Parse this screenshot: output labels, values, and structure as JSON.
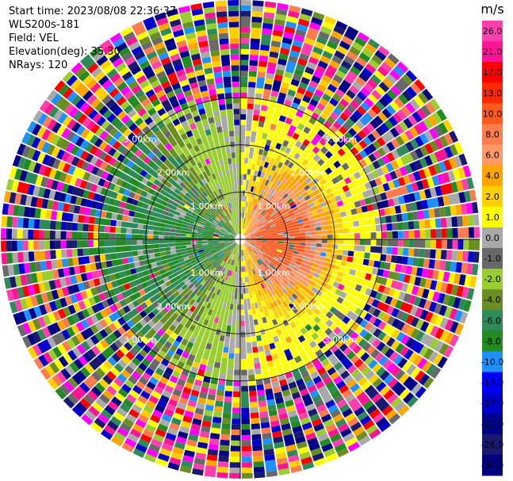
{
  "header": {
    "start_time": "Start time: 2023/08/08 22:36:37",
    "instrument": "WLS200s-181",
    "field": "Field: VEL",
    "elevation": "Elevation(deg): 35.30",
    "nrays": "NRays: 120"
  },
  "chart_data": {
    "type": "heatmap",
    "projection": "polar-ppi",
    "field": "VEL",
    "units": "m/s",
    "nrays": 120,
    "range_rings_km": [
      1.0,
      2.0,
      3.0
    ],
    "ring_labels": [
      "1.00km",
      "2.00km",
      "3.00km"
    ],
    "max_range_km": 3.6,
    "colorbar": {
      "title": "m/s",
      "ticks": [
        "26.0",
        "21.0",
        "17.0",
        "13.0",
        "10.0",
        "8.0",
        "6.0",
        "4.0",
        "2.0",
        "1.0",
        "0.0",
        "-1.0",
        "-2.0",
        "-4.0",
        "-6.0",
        "-8.0",
        "-10.0",
        "-13.0",
        "-17.0",
        "-21.0",
        "-26.0",
        "-30.0"
      ],
      "colors": [
        "#ff3fae",
        "#ff1493",
        "#ff0000",
        "#ff2a00",
        "#ff5a1e",
        "#ff7c4f",
        "#ff9966",
        "#ffa500",
        "#ffd000",
        "#ffff00",
        "#a9a9a9",
        "#696969",
        "#9acd32",
        "#6b8e23",
        "#2e8b57",
        "#228b22",
        "#1e90ff",
        "#0000ff",
        "#0000cd",
        "#00008b",
        "#191970",
        "#000080"
      ]
    }
  }
}
